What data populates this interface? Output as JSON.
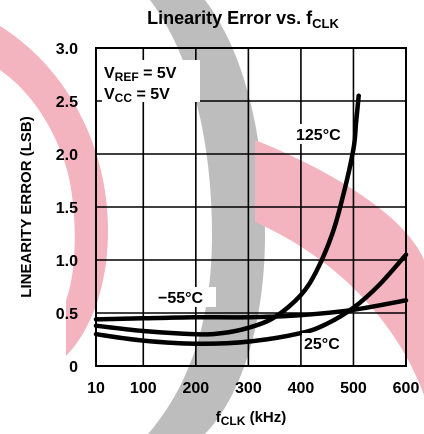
{
  "chart_data": {
    "type": "line",
    "title": "Linearity Error vs. f",
    "title_sub": "CLK",
    "xlabel": "f",
    "xlabel_sub": "CLK",
    "xlabel_suffix": " (kHz)",
    "ylabel": "LINEARITY ERROR (LSB)",
    "xlim": [
      10,
      600
    ],
    "ylim": [
      0,
      3.0
    ],
    "grid": true,
    "x_ticks": [
      {
        "value": 10,
        "label": "10"
      },
      {
        "value": 100,
        "label": "100"
      },
      {
        "value": 200,
        "label": "200"
      },
      {
        "value": 300,
        "label": "300"
      },
      {
        "value": 400,
        "label": "400"
      },
      {
        "value": 500,
        "label": "500"
      },
      {
        "value": 600,
        "label": "600"
      }
    ],
    "y_ticks": [
      {
        "value": 0,
        "label": "0"
      },
      {
        "value": 0.5,
        "label": "0.5"
      },
      {
        "value": 1.0,
        "label": "1.0"
      },
      {
        "value": 1.5,
        "label": "1.5"
      },
      {
        "value": 2.0,
        "label": "2.0"
      },
      {
        "value": 2.5,
        "label": "2.5"
      },
      {
        "value": 3.0,
        "label": "3.0"
      }
    ],
    "conditions": [
      {
        "main": "V",
        "sub": "REF",
        "rest": " = 5V"
      },
      {
        "main": "V",
        "sub": "CC",
        "rest": " = 5V"
      }
    ],
    "series": [
      {
        "name": "125°C",
        "x": [
          10,
          100,
          200,
          250,
          300,
          350,
          400,
          430,
          460,
          480,
          500,
          505,
          510
        ],
        "y": [
          0.38,
          0.33,
          0.3,
          0.31,
          0.36,
          0.46,
          0.67,
          0.9,
          1.25,
          1.6,
          2.05,
          2.3,
          2.55
        ]
      },
      {
        "name": "−55°C",
        "x": [
          10,
          100,
          200,
          300,
          400,
          500,
          600
        ],
        "y": [
          0.44,
          0.45,
          0.46,
          0.46,
          0.48,
          0.53,
          0.62
        ]
      },
      {
        "name": "25°C",
        "x": [
          10,
          100,
          200,
          300,
          400,
          450,
          500,
          550,
          600
        ],
        "y": [
          0.3,
          0.24,
          0.21,
          0.23,
          0.31,
          0.4,
          0.55,
          0.77,
          1.05
        ]
      }
    ]
  }
}
